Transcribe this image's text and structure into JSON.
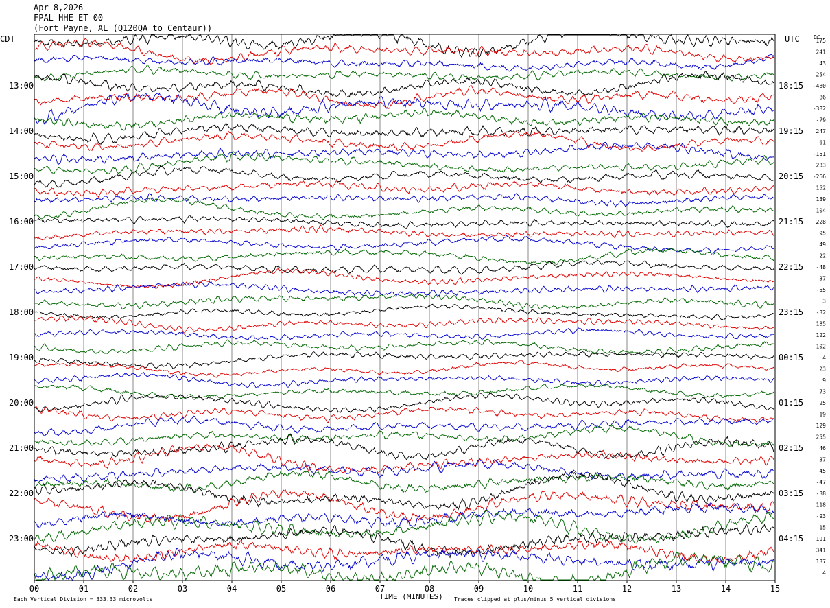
{
  "header": {
    "date": "Apr 8,2026",
    "station": "FPAL HHE ET 00",
    "location": "(Fort Payne, AL (Q120QA to Centaur))"
  },
  "chart_data": {
    "type": "line",
    "title": "",
    "left_axis_label": "CDT",
    "right_axis_label": "UTC",
    "dc_label": "DC",
    "xlabel": "TIME (MINUTES)",
    "xlim": [
      0,
      15
    ],
    "x_ticks": [
      "00",
      "01",
      "02",
      "03",
      "04",
      "05",
      "06",
      "07",
      "08",
      "09",
      "10",
      "11",
      "12",
      "13",
      "14",
      "15"
    ],
    "trace_minutes": 15,
    "trace_count": 48,
    "trace_colors": [
      "#000000",
      "#dd0000",
      "#0000cc",
      "#006600"
    ],
    "left_time_labels": [
      {
        "trace": 4,
        "label": "13:00"
      },
      {
        "trace": 8,
        "label": "14:00"
      },
      {
        "trace": 12,
        "label": "15:00"
      },
      {
        "trace": 16,
        "label": "16:00"
      },
      {
        "trace": 20,
        "label": "17:00"
      },
      {
        "trace": 24,
        "label": "18:00"
      },
      {
        "trace": 28,
        "label": "19:00"
      },
      {
        "trace": 32,
        "label": "20:00"
      },
      {
        "trace": 36,
        "label": "21:00"
      },
      {
        "trace": 40,
        "label": "22:00"
      },
      {
        "trace": 44,
        "label": "23:00"
      }
    ],
    "right_time_labels": [
      {
        "trace": 4,
        "label": "18:15"
      },
      {
        "trace": 8,
        "label": "19:15"
      },
      {
        "trace": 12,
        "label": "20:15"
      },
      {
        "trace": 16,
        "label": "21:15"
      },
      {
        "trace": 20,
        "label": "22:15"
      },
      {
        "trace": 24,
        "label": "23:15"
      },
      {
        "trace": 28,
        "label": "00:15"
      },
      {
        "trace": 32,
        "label": "01:15"
      },
      {
        "trace": 36,
        "label": "02:15"
      },
      {
        "trace": 40,
        "label": "03:15"
      },
      {
        "trace": 44,
        "label": "04:15"
      }
    ],
    "dc_offsets": [
      "175",
      "241",
      "43",
      "254",
      "-480",
      "86",
      "-382",
      "-79",
      "247",
      "61",
      "-151",
      "233",
      "-266",
      "152",
      "139",
      "104",
      "228",
      "95",
      "49",
      "22",
      "-48",
      "-37",
      "-55",
      "3",
      "-32",
      "185",
      "122",
      "102",
      "4",
      "23",
      "9",
      "73",
      "25",
      "19",
      "129",
      "255",
      "46",
      "37",
      "45",
      "-47",
      "-38",
      "118",
      "-93",
      "-15",
      "191",
      "341",
      "137",
      "4"
    ],
    "amplitude": [
      1.4,
      1.2,
      1.1,
      1.0,
      1.3,
      1.2,
      1.5,
      1.4,
      1.3,
      1.2,
      1.2,
      1.0,
      1.1,
      1.0,
      1.0,
      1.0,
      1.0,
      0.9,
      0.9,
      0.9,
      0.9,
      0.9,
      0.9,
      0.9,
      0.8,
      0.8,
      0.8,
      0.8,
      0.8,
      0.8,
      0.8,
      0.8,
      0.9,
      0.9,
      1.0,
      1.0,
      1.2,
      1.2,
      1.3,
      1.4,
      1.6,
      1.6,
      1.6,
      1.6,
      1.7,
      1.7,
      1.7,
      1.7
    ],
    "footer_left": "Each Vertical Division =  333.33 microvolts",
    "footer_right": "Traces clipped at plus/minus 5 vertical divisions"
  }
}
